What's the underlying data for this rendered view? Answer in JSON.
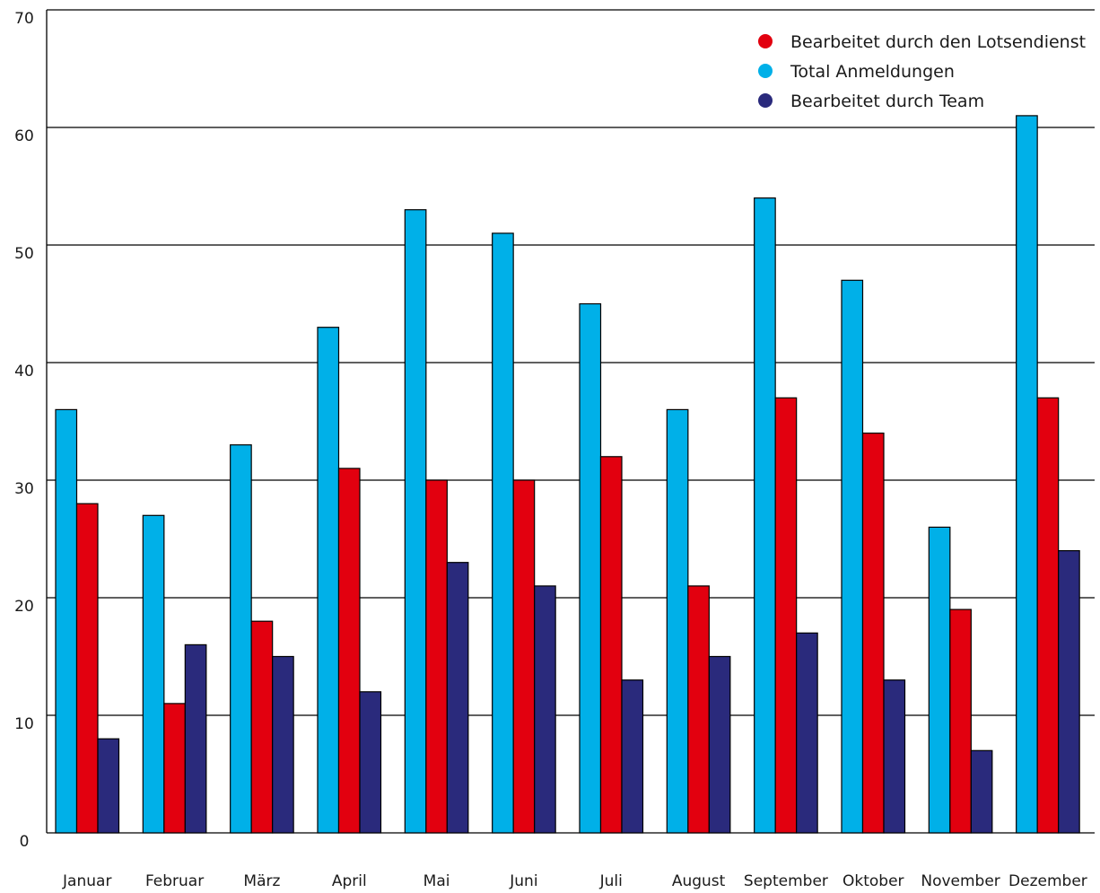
{
  "chart_data": {
    "type": "bar",
    "title": "",
    "xlabel": "",
    "ylabel": "",
    "ylim": [
      0,
      70
    ],
    "yticks": [
      0,
      10,
      20,
      30,
      40,
      50,
      60,
      70
    ],
    "grid": true,
    "legend_position": "top-right",
    "categories": [
      "Januar",
      "Februar",
      "März",
      "April",
      "Mai",
      "Juni",
      "Juli",
      "August",
      "September",
      "Oktober",
      "November",
      "Dezember"
    ],
    "series": [
      {
        "name": "Total Anmeldungen",
        "color": "#00b0e8",
        "values": [
          36,
          27,
          33,
          43,
          53,
          51,
          45,
          36,
          54,
          47,
          26,
          61
        ]
      },
      {
        "name": "Bearbeitet durch den Lotsendienst",
        "color": "#e2000f",
        "values": [
          28,
          11,
          18,
          31,
          30,
          30,
          32,
          21,
          37,
          34,
          19,
          37
        ]
      },
      {
        "name": "Bearbeitet durch Team",
        "color": "#2a2a7c",
        "values": [
          8,
          16,
          15,
          12,
          23,
          21,
          13,
          15,
          17,
          13,
          7,
          24
        ]
      }
    ],
    "legend": [
      {
        "label": "Bearbeitet durch den Lotsendienst",
        "color": "#e2000f"
      },
      {
        "label": "Total Anmeldungen",
        "color": "#00b0e8"
      },
      {
        "label": "Bearbeitet durch Team",
        "color": "#2a2a7c"
      }
    ]
  }
}
